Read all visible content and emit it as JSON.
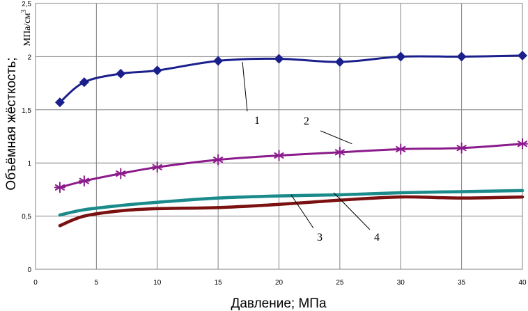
{
  "chart_data": {
    "type": "line",
    "xlabel": "Давление; МПа",
    "ylabel": "Объёмная жёсткость;",
    "ylabel_unit": "МПа/см",
    "ylabel_unit_superscript": "3",
    "xlim": [
      0,
      40
    ],
    "ylim": [
      0,
      2.5
    ],
    "x_ticks": [
      "0",
      "5",
      "10",
      "15",
      "20",
      "25",
      "30",
      "35",
      "40"
    ],
    "y_ticks": [
      "0",
      "0,5",
      "1",
      "1,5",
      "2",
      "2,5"
    ],
    "grid": true,
    "series": [
      {
        "label": "1",
        "color": "#1a1f8c",
        "marker": "diamond",
        "points": [
          [
            2,
            1.57
          ],
          [
            4,
            1.76
          ],
          [
            7,
            1.84
          ],
          [
            10,
            1.87
          ],
          [
            15,
            1.96
          ],
          [
            20,
            1.98
          ],
          [
            25,
            1.95
          ],
          [
            30,
            2.0
          ],
          [
            35,
            2.0
          ],
          [
            40,
            2.01
          ]
        ]
      },
      {
        "label": "2",
        "color": "#8b1a8b",
        "marker": "asterisk",
        "points": [
          [
            2,
            0.77
          ],
          [
            4,
            0.83
          ],
          [
            7,
            0.9
          ],
          [
            10,
            0.96
          ],
          [
            15,
            1.03
          ],
          [
            20,
            1.07
          ],
          [
            25,
            1.1
          ],
          [
            30,
            1.13
          ],
          [
            35,
            1.14
          ],
          [
            40,
            1.18
          ]
        ]
      },
      {
        "label": "3",
        "color": "#1a8a8a",
        "marker": "none",
        "points": [
          [
            2,
            0.51
          ],
          [
            4,
            0.56
          ],
          [
            7,
            0.6
          ],
          [
            10,
            0.63
          ],
          [
            15,
            0.67
          ],
          [
            20,
            0.69
          ],
          [
            25,
            0.7
          ],
          [
            30,
            0.72
          ],
          [
            35,
            0.73
          ],
          [
            40,
            0.74
          ]
        ]
      },
      {
        "label": "4",
        "color": "#7a1010",
        "marker": "none",
        "points": [
          [
            2,
            0.41
          ],
          [
            4,
            0.5
          ],
          [
            7,
            0.55
          ],
          [
            10,
            0.57
          ],
          [
            15,
            0.58
          ],
          [
            20,
            0.61
          ],
          [
            25,
            0.65
          ],
          [
            30,
            0.68
          ],
          [
            35,
            0.67
          ],
          [
            40,
            0.68
          ]
        ]
      }
    ],
    "annotations": [
      {
        "text": "1",
        "series": "1",
        "points_to": [
          17,
          1.95
        ]
      },
      {
        "text": "2",
        "series": "2",
        "points_to": [
          26,
          1.18
        ]
      },
      {
        "text": "3",
        "series": "3",
        "points_to": [
          21,
          0.7
        ]
      },
      {
        "text": "4",
        "series": "4",
        "points_to": [
          24.5,
          0.72
        ]
      }
    ]
  }
}
